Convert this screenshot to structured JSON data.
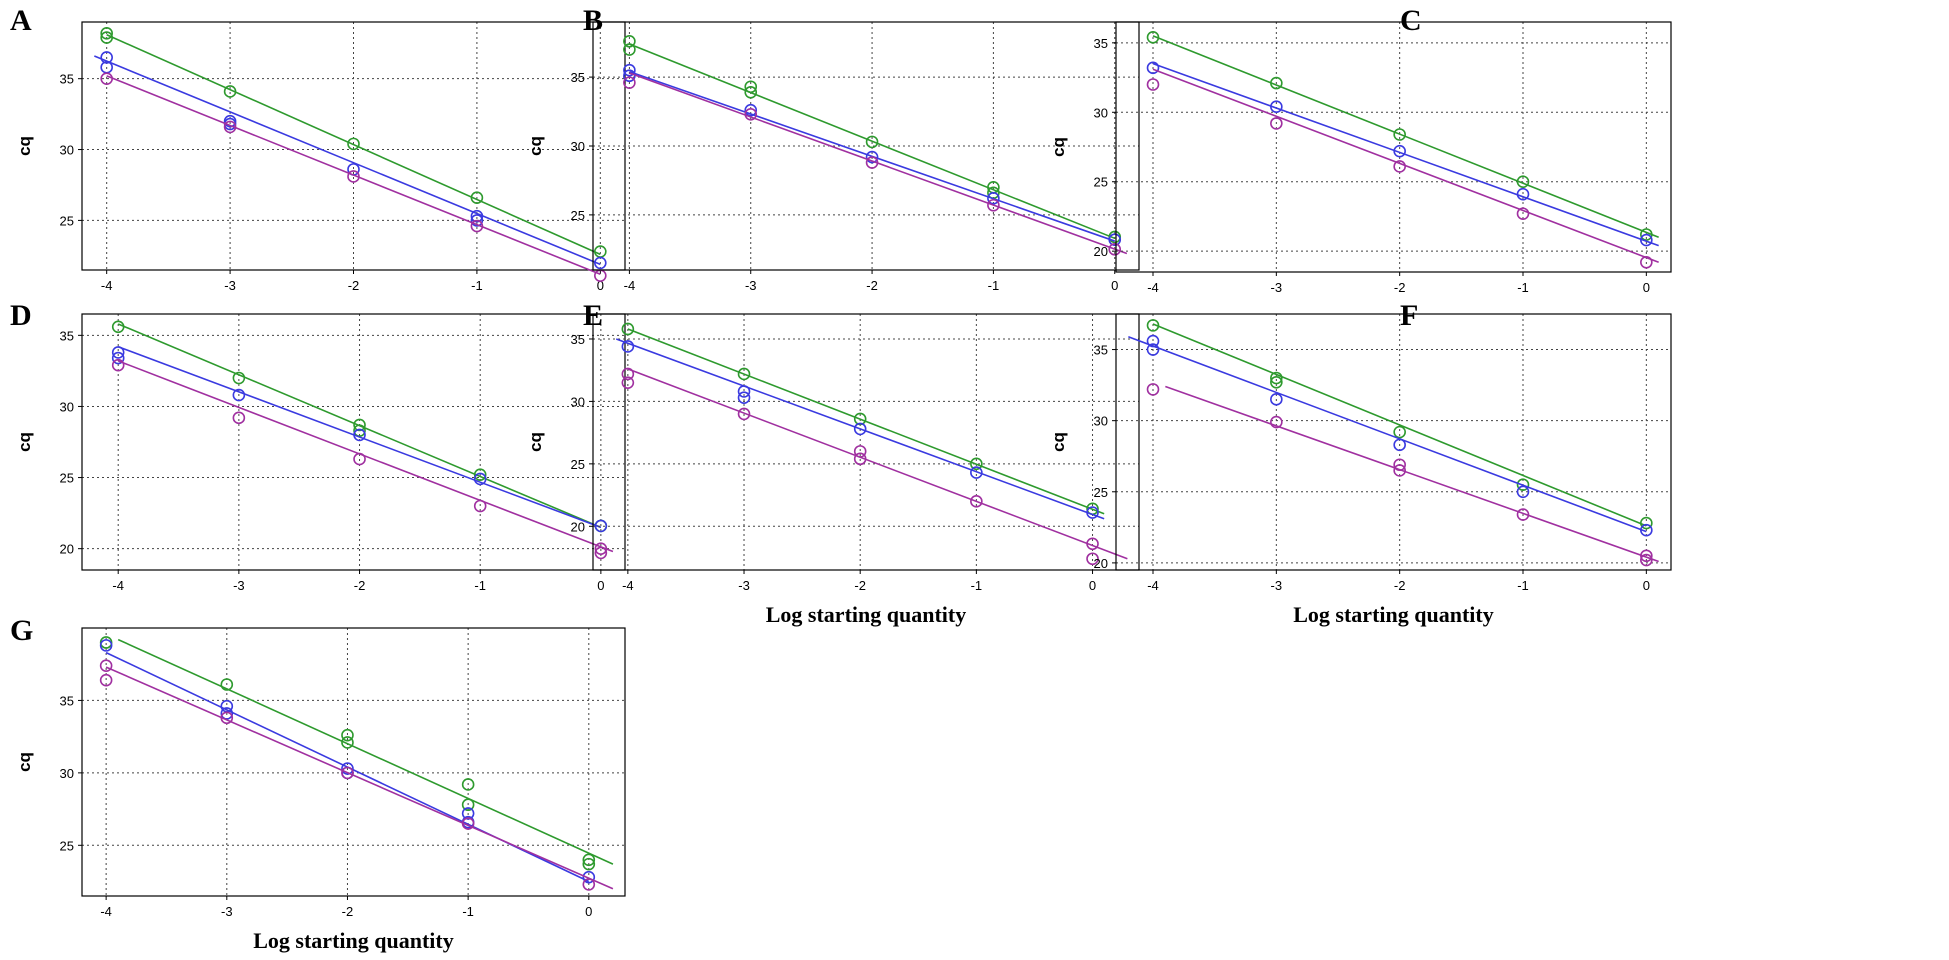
{
  "figure": {
    "colors": {
      "green": "#2e9a2e",
      "blue": "#3a3ae0",
      "purple": "#a030a0"
    },
    "icons": {
      "marker": "open-circle-marker"
    }
  },
  "chart_data": [
    {
      "panel": "A",
      "type": "scatter",
      "title": "",
      "xlabel": "",
      "ylabel": "cq",
      "xlim": [
        -4.2,
        0.2
      ],
      "ylim": [
        21.5,
        39
      ],
      "xticks": [
        "-4",
        "-3",
        "-2",
        "-1",
        "0"
      ],
      "yticks": [
        "25",
        "30",
        "35"
      ],
      "series": [
        {
          "name": "green",
          "color": "#2e9a2e",
          "fit": [
            [
              -4,
              38.1
            ],
            [
              0,
              22.6
            ]
          ],
          "points": [
            [
              -4,
              38.2
            ],
            [
              -4,
              37.9
            ],
            [
              -3,
              34.1
            ],
            [
              -2,
              30.4
            ],
            [
              -1,
              26.6
            ],
            [
              0,
              22.8
            ]
          ]
        },
        {
          "name": "blue",
          "color": "#3a3ae0",
          "fit": [
            [
              -4.1,
              36.6
            ],
            [
              0,
              21.9
            ]
          ],
          "points": [
            [
              -4,
              36.5
            ],
            [
              -4,
              35.8
            ],
            [
              -3,
              32.0
            ],
            [
              -3,
              31.8
            ],
            [
              -2,
              28.6
            ],
            [
              -1,
              25.3
            ],
            [
              -1,
              25.0
            ],
            [
              0,
              22.0
            ]
          ]
        },
        {
          "name": "purple",
          "color": "#a030a0",
          "fit": [
            [
              -4,
              35.2
            ],
            [
              0,
              21.2
            ]
          ],
          "points": [
            [
              -4,
              35.0
            ],
            [
              -3,
              31.6
            ],
            [
              -2,
              28.1
            ],
            [
              -1,
              24.6
            ],
            [
              0,
              21.1
            ]
          ]
        }
      ]
    },
    {
      "panel": "B",
      "type": "scatter",
      "title": "",
      "xlabel": "",
      "ylabel": "cq",
      "xlim": [
        -4.3,
        0.2
      ],
      "ylim": [
        21,
        39
      ],
      "xticks": [
        "-4",
        "-3",
        "-2",
        "-1",
        "0"
      ],
      "yticks": [
        "25",
        "30",
        "35"
      ],
      "series": [
        {
          "name": "green",
          "color": "#2e9a2e",
          "fit": [
            [
              -4,
              37.4
            ],
            [
              0,
              23.3
            ]
          ],
          "points": [
            [
              -4,
              37.6
            ],
            [
              -4,
              37.0
            ],
            [
              -3,
              34.3
            ],
            [
              -3,
              33.9
            ],
            [
              -2,
              30.3
            ],
            [
              -1,
              27.0
            ],
            [
              -1,
              26.6
            ],
            [
              0,
              23.4
            ]
          ]
        },
        {
          "name": "blue",
          "color": "#3a3ae0",
          "fit": [
            [
              -4,
              35.4
            ],
            [
              0,
              23.1
            ]
          ],
          "points": [
            [
              -4,
              35.5
            ],
            [
              -4,
              35.1
            ],
            [
              -3,
              32.6
            ],
            [
              -2,
              29.2
            ],
            [
              -1,
              26.2
            ],
            [
              0,
              23.2
            ]
          ]
        },
        {
          "name": "purple",
          "color": "#a030a0",
          "fit": [
            [
              -4,
              35.3
            ],
            [
              0.1,
              22.2
            ]
          ],
          "points": [
            [
              -4,
              34.6
            ],
            [
              -3,
              32.3
            ],
            [
              -2,
              28.8
            ],
            [
              -1,
              25.7
            ],
            [
              0,
              22.5
            ]
          ]
        }
      ]
    },
    {
      "panel": "C",
      "type": "scatter",
      "title": "",
      "xlabel": "",
      "ylabel": "cq",
      "xlim": [
        -4.3,
        0.2
      ],
      "ylim": [
        18.5,
        36.5
      ],
      "xticks": [
        "-4",
        "-3",
        "-2",
        "-1",
        "0"
      ],
      "yticks": [
        "20",
        "25",
        "30",
        "35"
      ],
      "series": [
        {
          "name": "green",
          "color": "#2e9a2e",
          "fit": [
            [
              -4,
              35.5
            ],
            [
              0.1,
              21.0
            ]
          ],
          "points": [
            [
              -4,
              35.4
            ],
            [
              -3,
              32.1
            ],
            [
              -2,
              28.4
            ],
            [
              -1,
              25.0
            ],
            [
              0,
              21.2
            ]
          ]
        },
        {
          "name": "blue",
          "color": "#3a3ae0",
          "fit": [
            [
              -4,
              33.5
            ],
            [
              0.1,
              20.4
            ]
          ],
          "points": [
            [
              -4,
              33.2
            ],
            [
              -3,
              30.4
            ],
            [
              -2,
              27.2
            ],
            [
              -1,
              24.1
            ],
            [
              0,
              20.8
            ]
          ]
        },
        {
          "name": "purple",
          "color": "#a030a0",
          "fit": [
            [
              -4,
              33.1
            ],
            [
              0.1,
              19.2
            ]
          ],
          "points": [
            [
              -4,
              32.0
            ],
            [
              -3,
              29.2
            ],
            [
              -2,
              26.1
            ],
            [
              -1,
              22.7
            ],
            [
              0,
              19.2
            ]
          ]
        }
      ]
    },
    {
      "panel": "D",
      "type": "scatter",
      "title": "",
      "xlabel": "",
      "ylabel": "cq",
      "xlim": [
        -4.3,
        0.2
      ],
      "ylim": [
        18.5,
        36.5
      ],
      "xticks": [
        "-4",
        "-3",
        "-2",
        "-1",
        "0"
      ],
      "yticks": [
        "20",
        "25",
        "30",
        "35"
      ],
      "series": [
        {
          "name": "green",
          "color": "#2e9a2e",
          "fit": [
            [
              -4,
              35.8
            ],
            [
              0,
              21.5
            ]
          ],
          "points": [
            [
              -4,
              35.6
            ],
            [
              -3,
              32.0
            ],
            [
              -2,
              28.7
            ],
            [
              -2,
              28.3
            ],
            [
              -1,
              25.2
            ],
            [
              0,
              21.6
            ]
          ]
        },
        {
          "name": "blue",
          "color": "#3a3ae0",
          "fit": [
            [
              -4,
              34.2
            ],
            [
              0,
              21.5
            ]
          ],
          "points": [
            [
              -4,
              33.8
            ],
            [
              -4,
              33.4
            ],
            [
              -3,
              30.8
            ],
            [
              -2,
              28.0
            ],
            [
              -1,
              24.9
            ],
            [
              0,
              21.6
            ]
          ]
        },
        {
          "name": "purple",
          "color": "#a030a0",
          "fit": [
            [
              -4,
              33.2
            ],
            [
              0.1,
              19.8
            ]
          ],
          "points": [
            [
              -4,
              32.9
            ],
            [
              -3,
              29.2
            ],
            [
              -2,
              26.3
            ],
            [
              -1,
              23.0
            ],
            [
              0,
              20.0
            ],
            [
              0,
              19.7
            ]
          ]
        }
      ]
    },
    {
      "panel": "E",
      "type": "scatter",
      "title": "",
      "xlabel": "Log starting quantity",
      "ylabel": "cq",
      "xlim": [
        -4.3,
        0.4
      ],
      "ylim": [
        16.5,
        37
      ],
      "xticks": [
        "-4",
        "-3",
        "-2",
        "-1",
        "0"
      ],
      "yticks": [
        "20",
        "25",
        "30",
        "35"
      ],
      "series": [
        {
          "name": "green",
          "color": "#2e9a2e",
          "fit": [
            [
              -4,
              35.8
            ],
            [
              0.1,
              21.0
            ]
          ],
          "points": [
            [
              -4,
              35.8
            ],
            [
              -3,
              32.2
            ],
            [
              -2,
              28.6
            ],
            [
              -1,
              25.0
            ],
            [
              0,
              21.4
            ]
          ]
        },
        {
          "name": "blue",
          "color": "#3a3ae0",
          "fit": [
            [
              -4.1,
              35.0
            ],
            [
              0.1,
              20.6
            ]
          ],
          "points": [
            [
              -4,
              34.4
            ],
            [
              -3,
              30.8
            ],
            [
              -3,
              30.3
            ],
            [
              -2,
              27.8
            ],
            [
              -1,
              24.3
            ],
            [
              0,
              21.1
            ]
          ]
        },
        {
          "name": "purple",
          "color": "#a030a0",
          "fit": [
            [
              -4,
              32.6
            ],
            [
              0.3,
              17.4
            ]
          ],
          "points": [
            [
              -4,
              32.2
            ],
            [
              -4,
              31.5
            ],
            [
              -3,
              29.0
            ],
            [
              -2,
              26.0
            ],
            [
              -2,
              25.4
            ],
            [
              -1,
              22.0
            ],
            [
              0,
              18.6
            ],
            [
              0,
              17.4
            ]
          ]
        }
      ]
    },
    {
      "panel": "F",
      "type": "scatter",
      "title": "",
      "xlabel": "Log starting quantity",
      "ylabel": "cq",
      "xlim": [
        -4.3,
        0.2
      ],
      "ylim": [
        19.5,
        37.5
      ],
      "xticks": [
        "-4",
        "-3",
        "-2",
        "-1",
        "0"
      ],
      "yticks": [
        "20",
        "25",
        "30",
        "35"
      ],
      "series": [
        {
          "name": "green",
          "color": "#2e9a2e",
          "fit": [
            [
              -4,
              36.8
            ],
            [
              0,
              22.6
            ]
          ],
          "points": [
            [
              -4,
              36.7
            ],
            [
              -3,
              33.0
            ],
            [
              -3,
              32.7
            ],
            [
              -2,
              29.2
            ],
            [
              -1,
              25.5
            ],
            [
              0,
              22.8
            ]
          ]
        },
        {
          "name": "blue",
          "color": "#3a3ae0",
          "fit": [
            [
              -4.2,
              35.9
            ],
            [
              0,
              22.2
            ]
          ],
          "points": [
            [
              -4,
              35.6
            ],
            [
              -4,
              35.0
            ],
            [
              -3,
              31.5
            ],
            [
              -2,
              28.3
            ],
            [
              -1,
              25.0
            ],
            [
              0,
              22.3
            ]
          ]
        },
        {
          "name": "purple",
          "color": "#a030a0",
          "fit": [
            [
              -3.9,
              32.4
            ],
            [
              0.1,
              20.1
            ]
          ],
          "points": [
            [
              -4,
              32.2
            ],
            [
              -3,
              29.9
            ],
            [
              -2,
              26.9
            ],
            [
              -2,
              26.5
            ],
            [
              -1,
              23.4
            ],
            [
              0,
              20.5
            ],
            [
              0,
              20.2
            ]
          ]
        }
      ]
    },
    {
      "panel": "G",
      "type": "scatter",
      "title": "",
      "xlabel": "Log starting quantity",
      "ylabel": "cq",
      "xlim": [
        -4.2,
        0.3
      ],
      "ylim": [
        21.5,
        40
      ],
      "xticks": [
        "-4",
        "-3",
        "-2",
        "-1",
        "0"
      ],
      "yticks": [
        "25",
        "30",
        "35"
      ],
      "series": [
        {
          "name": "green",
          "color": "#2e9a2e",
          "fit": [
            [
              -3.9,
              39.2
            ],
            [
              0.2,
              23.7
            ]
          ],
          "points": [
            [
              -4,
              39.0
            ],
            [
              -3,
              36.1
            ],
            [
              -2,
              32.6
            ],
            [
              -2,
              32.1
            ],
            [
              -1,
              29.2
            ],
            [
              -1,
              27.8
            ],
            [
              0,
              24.0
            ],
            [
              0,
              23.7
            ]
          ]
        },
        {
          "name": "blue",
          "color": "#3a3ae0",
          "fit": [
            [
              -4,
              38.3
            ],
            [
              0,
              22.5
            ]
          ],
          "points": [
            [
              -4,
              38.8
            ],
            [
              -3,
              34.6
            ],
            [
              -3,
              34.1
            ],
            [
              -2,
              30.3
            ],
            [
              -2,
              30.0
            ],
            [
              -1,
              27.2
            ],
            [
              -1,
              26.6
            ],
            [
              0,
              22.8
            ]
          ]
        },
        {
          "name": "purple",
          "color": "#a030a0",
          "fit": [
            [
              -4,
              37.3
            ],
            [
              0.2,
              22.0
            ]
          ],
          "points": [
            [
              -4,
              37.4
            ],
            [
              -4,
              36.4
            ],
            [
              -3,
              33.8
            ],
            [
              -2,
              30.0
            ],
            [
              -1,
              26.5
            ],
            [
              0,
              22.3
            ]
          ]
        }
      ]
    }
  ]
}
